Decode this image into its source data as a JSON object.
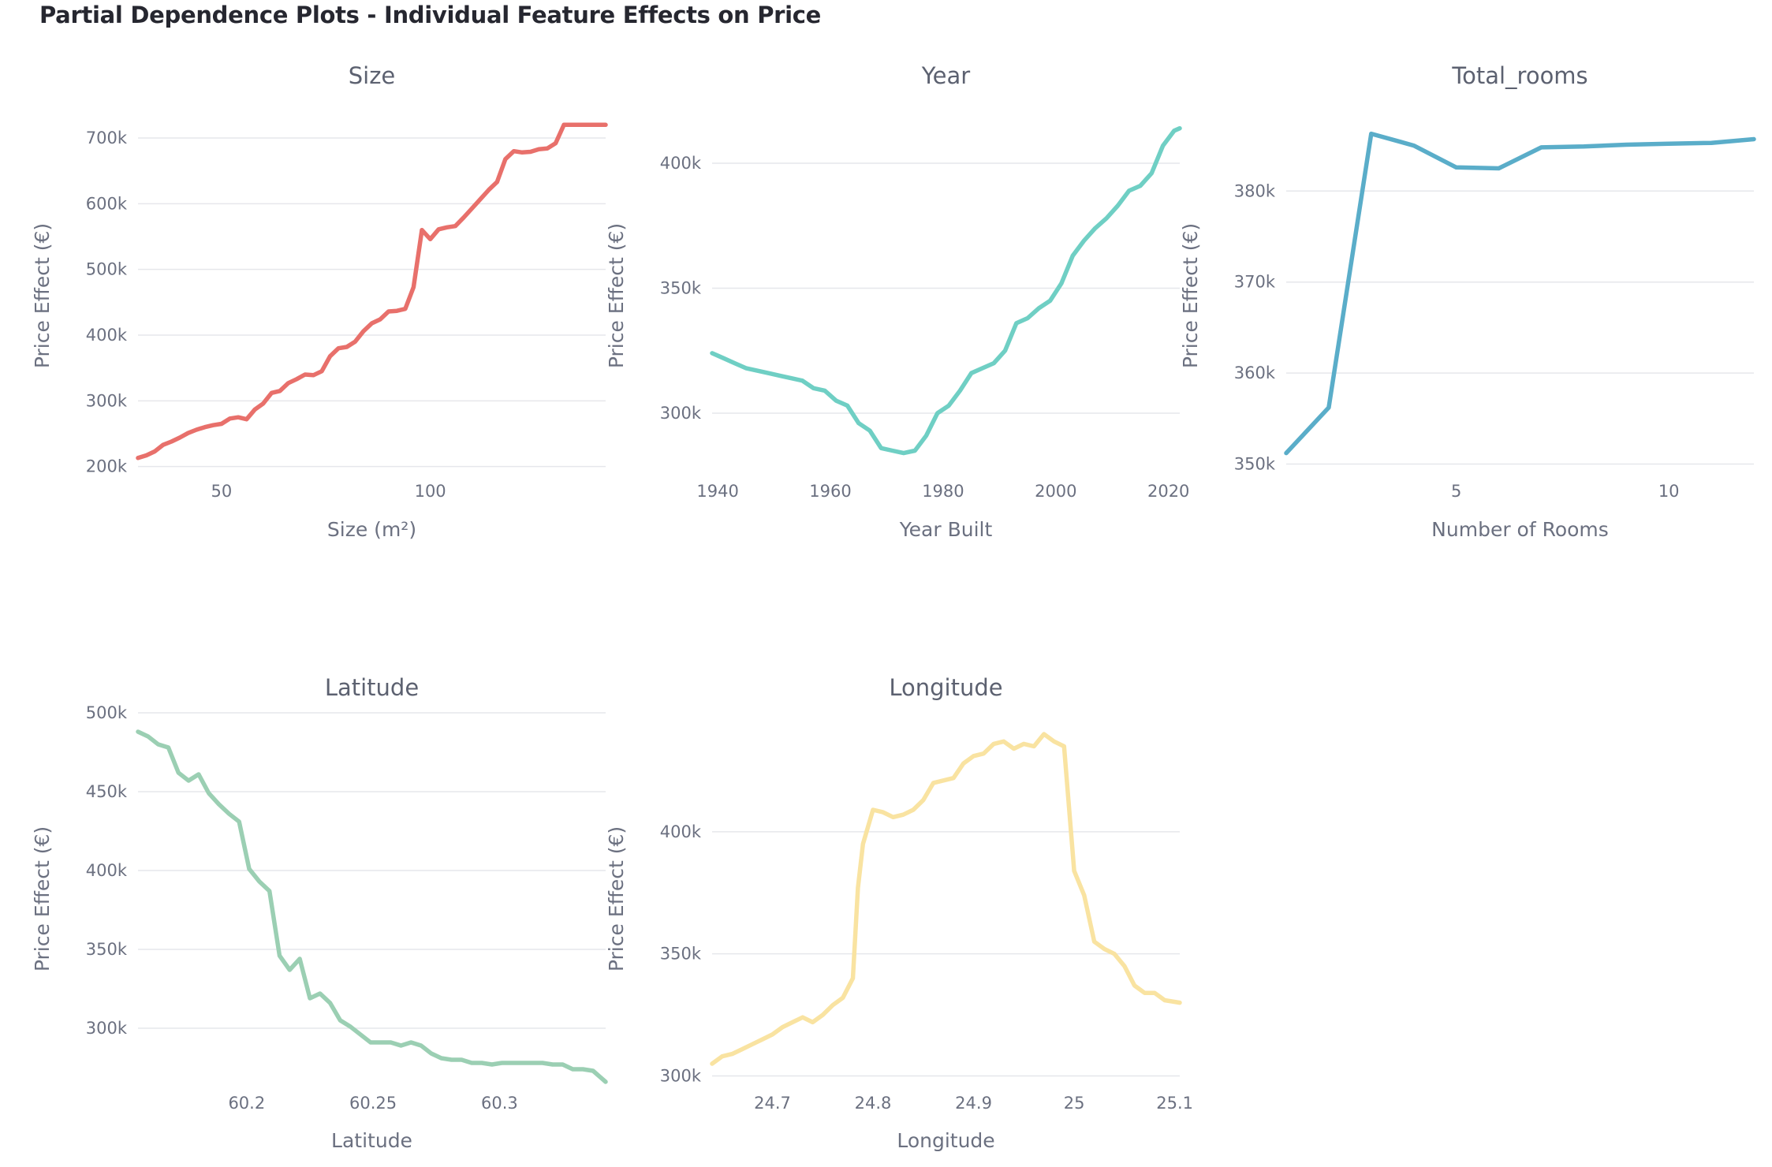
{
  "title": "Partial Dependence Plots - Individual Feature Effects on Price",
  "chart_data": [
    {
      "type": "line",
      "title": "Size",
      "xlabel": "Size (m²)",
      "ylabel": "Price Effect (€)",
      "color": "#e8706b",
      "xlim": [
        30,
        142
      ],
      "ylim": [
        190000,
        730000
      ],
      "xticks": [
        {
          "v": 50,
          "label": "50"
        },
        {
          "v": 100,
          "label": "100"
        }
      ],
      "yticks": [
        {
          "v": 200000,
          "label": "200k"
        },
        {
          "v": 300000,
          "label": "300k"
        },
        {
          "v": 400000,
          "label": "400k"
        },
        {
          "v": 500000,
          "label": "500k"
        },
        {
          "v": 600000,
          "label": "600k"
        },
        {
          "v": 700000,
          "label": "700k"
        }
      ],
      "x": [
        30,
        32,
        34,
        36,
        38,
        40,
        42,
        44,
        46,
        48,
        50,
        52,
        54,
        56,
        58,
        60,
        62,
        64,
        66,
        68,
        70,
        72,
        74,
        76,
        78,
        80,
        82,
        84,
        86,
        88,
        90,
        92,
        94,
        96,
        98,
        100,
        102,
        104,
        106,
        108,
        110,
        112,
        114,
        116,
        118,
        120,
        122,
        124,
        126,
        128,
        130,
        132,
        134,
        136,
        138,
        140,
        142
      ],
      "y": [
        213000,
        217000,
        223000,
        233000,
        238000,
        244000,
        251000,
        256000,
        260000,
        263000,
        265000,
        273000,
        275000,
        272000,
        287000,
        296000,
        312000,
        315000,
        327000,
        333000,
        340000,
        339000,
        345000,
        368000,
        380000,
        382000,
        390000,
        406000,
        418000,
        424000,
        436000,
        437000,
        440000,
        473000,
        560000,
        546000,
        561000,
        564000,
        566000,
        579000,
        593000,
        607000,
        621000,
        633000,
        668000,
        680000,
        678000,
        679000,
        683000,
        684000,
        692000,
        720000,
        720000,
        720000,
        720000,
        720000,
        720000
      ]
    },
    {
      "type": "line",
      "title": "Year",
      "xlabel": "Year Built",
      "ylabel": "Price Effect (€)",
      "color": "#6fcfc4",
      "xlim": [
        1939,
        2022
      ],
      "ylim": [
        276000,
        418000
      ],
      "xticks": [
        {
          "v": 1940,
          "label": "1940"
        },
        {
          "v": 1960,
          "label": "1960"
        },
        {
          "v": 1980,
          "label": "1980"
        },
        {
          "v": 2000,
          "label": "2000"
        },
        {
          "v": 2020,
          "label": "2020"
        }
      ],
      "yticks": [
        {
          "v": 300000,
          "label": "300k"
        },
        {
          "v": 350000,
          "label": "350k"
        },
        {
          "v": 400000,
          "label": "400k"
        }
      ],
      "x": [
        1939,
        1941,
        1943,
        1945,
        1947,
        1949,
        1951,
        1953,
        1955,
        1957,
        1959,
        1961,
        1963,
        1965,
        1967,
        1969,
        1971,
        1973,
        1975,
        1977,
        1979,
        1981,
        1983,
        1985,
        1987,
        1989,
        1991,
        1993,
        1995,
        1997,
        1999,
        2001,
        2003,
        2005,
        2007,
        2009,
        2011,
        2013,
        2015,
        2017,
        2019,
        2021,
        2022
      ],
      "y": [
        324000,
        322000,
        320000,
        318000,
        317000,
        316000,
        315000,
        314000,
        313000,
        310000,
        309000,
        305000,
        303000,
        296000,
        293000,
        286000,
        285000,
        284000,
        285000,
        291000,
        300000,
        303000,
        309000,
        316000,
        318000,
        320000,
        325000,
        336000,
        338000,
        342000,
        345000,
        352000,
        363000,
        369000,
        374000,
        378000,
        383000,
        389000,
        391000,
        396000,
        407000,
        413000,
        414000
      ]
    },
    {
      "type": "line",
      "title": "Total_rooms",
      "xlabel": "Number of Rooms",
      "ylabel": "Price Effect (€)",
      "color": "#5aadc9",
      "xlim": [
        1,
        12
      ],
      "ylim": [
        349000,
        388000
      ],
      "xticks": [
        {
          "v": 5,
          "label": "5"
        },
        {
          "v": 10,
          "label": "10"
        }
      ],
      "yticks": [
        {
          "v": 350000,
          "label": "350k"
        },
        {
          "v": 360000,
          "label": "360k"
        },
        {
          "v": 370000,
          "label": "370k"
        },
        {
          "v": 380000,
          "label": "380k"
        }
      ],
      "x": [
        1,
        2,
        3,
        4,
        5,
        6,
        7,
        8,
        9,
        10,
        11,
        12
      ],
      "y": [
        351200,
        356200,
        386300,
        385000,
        382600,
        382500,
        384800,
        384900,
        385100,
        385200,
        385300,
        385700
      ]
    },
    {
      "type": "line",
      "title": "Latitude",
      "xlabel": "Latitude",
      "ylabel": "Price Effect (€)",
      "color": "#9bcfb3",
      "xlim": [
        60.157,
        60.342
      ],
      "ylim": [
        262000,
        502000
      ],
      "xticks": [
        {
          "v": 60.2,
          "label": "60.2"
        },
        {
          "v": 60.25,
          "label": "60.25"
        },
        {
          "v": 60.3,
          "label": "60.3"
        }
      ],
      "yticks": [
        {
          "v": 300000,
          "label": "300k"
        },
        {
          "v": 350000,
          "label": "350k"
        },
        {
          "v": 400000,
          "label": "400k"
        },
        {
          "v": 450000,
          "label": "450k"
        },
        {
          "v": 500000,
          "label": "500k"
        }
      ],
      "x": [
        60.157,
        60.161,
        60.165,
        60.169,
        60.173,
        60.177,
        60.181,
        60.185,
        60.189,
        60.193,
        60.197,
        60.201,
        60.205,
        60.209,
        60.213,
        60.217,
        60.221,
        60.225,
        60.229,
        60.233,
        60.237,
        60.241,
        60.245,
        60.249,
        60.253,
        60.257,
        60.261,
        60.265,
        60.269,
        60.273,
        60.277,
        60.281,
        60.285,
        60.289,
        60.293,
        60.297,
        60.301,
        60.305,
        60.309,
        60.313,
        60.317,
        60.321,
        60.325,
        60.329,
        60.333,
        60.337,
        60.342
      ],
      "y": [
        488000,
        485000,
        480000,
        478000,
        462000,
        457000,
        461000,
        449000,
        442000,
        436000,
        431000,
        401000,
        393000,
        387000,
        346000,
        337000,
        344000,
        319000,
        322000,
        316000,
        305000,
        301000,
        296000,
        291000,
        291000,
        291000,
        289000,
        291000,
        289000,
        284000,
        281000,
        280000,
        280000,
        278000,
        278000,
        277000,
        278000,
        278000,
        278000,
        278000,
        278000,
        277000,
        277000,
        274000,
        274000,
        273000,
        266000
      ]
    },
    {
      "type": "line",
      "title": "Longitude",
      "xlabel": "Longitude",
      "ylabel": "Price Effect (€)",
      "color": "#f9e3a1",
      "xlim": [
        24.64,
        25.105
      ],
      "ylim": [
        295000,
        450000
      ],
      "xticks": [
        {
          "v": 24.7,
          "label": "24.7"
        },
        {
          "v": 24.8,
          "label": "24.8"
        },
        {
          "v": 24.9,
          "label": "24.9"
        },
        {
          "v": 25.0,
          "label": "25"
        },
        {
          "v": 25.1,
          "label": "25.1"
        }
      ],
      "yticks": [
        {
          "v": 300000,
          "label": "300k"
        },
        {
          "v": 350000,
          "label": "350k"
        },
        {
          "v": 400000,
          "label": "400k"
        }
      ],
      "x": [
        24.64,
        24.65,
        24.66,
        24.67,
        24.68,
        24.69,
        24.7,
        24.71,
        24.72,
        24.73,
        24.74,
        24.75,
        24.76,
        24.77,
        24.78,
        24.785,
        24.79,
        24.8,
        24.81,
        24.82,
        24.83,
        24.84,
        24.85,
        24.86,
        24.87,
        24.88,
        24.89,
        24.9,
        24.91,
        24.92,
        24.93,
        24.94,
        24.95,
        24.96,
        24.97,
        24.98,
        24.99,
        25.0,
        25.01,
        25.02,
        25.03,
        25.04,
        25.05,
        25.06,
        25.07,
        25.08,
        25.09,
        25.105
      ],
      "y": [
        305000,
        308000,
        309000,
        311000,
        313000,
        315000,
        317000,
        320000,
        322000,
        324000,
        322000,
        325000,
        329000,
        332000,
        340000,
        377000,
        395000,
        409000,
        408000,
        406000,
        407000,
        409000,
        413000,
        420000,
        421000,
        422000,
        428000,
        431000,
        432000,
        436000,
        437000,
        434000,
        436000,
        435000,
        440000,
        437000,
        435000,
        384000,
        374000,
        355000,
        352000,
        350000,
        345000,
        337000,
        334000,
        334000,
        331000,
        330000
      ]
    }
  ]
}
